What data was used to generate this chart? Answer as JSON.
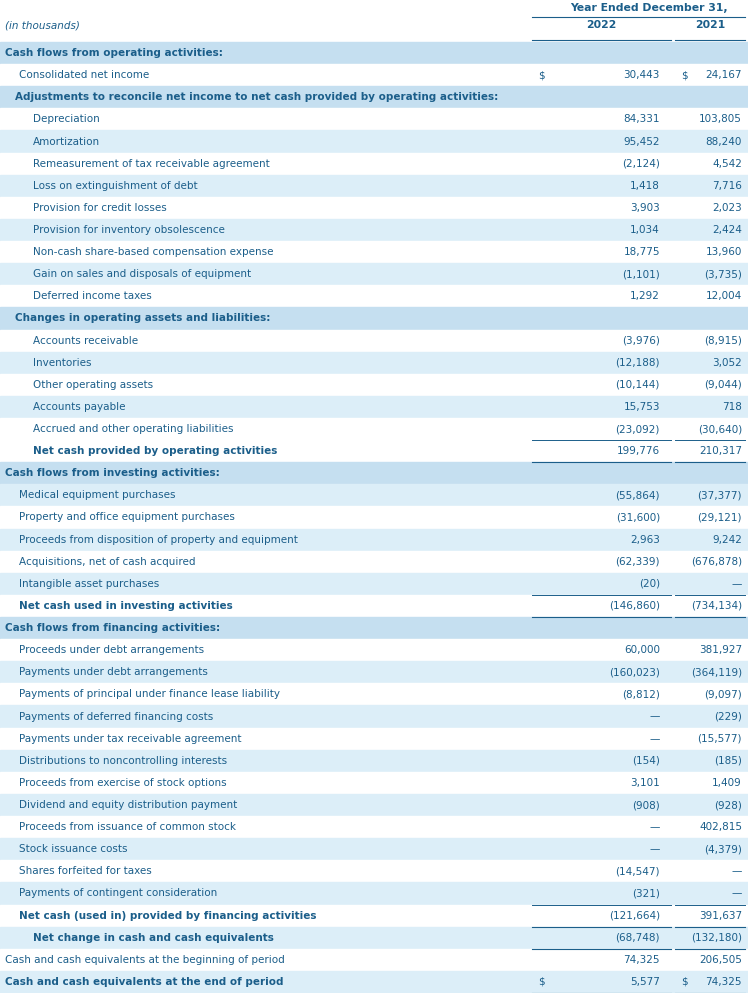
{
  "header_title": "Year Ended December 31,",
  "rows": [
    {
      "label": "Cash flows from operating activities:",
      "val2022": "",
      "val2021": "",
      "style": "section_header",
      "indent": 0,
      "bg": "#c5dff0"
    },
    {
      "label": "Consolidated net income",
      "val2022": "dollar_30,443",
      "val2021": "24,167",
      "style": "normal",
      "indent": 1,
      "bg": "#ffffff",
      "dollar2021": true
    },
    {
      "label": "Adjustments to reconcile net income to net cash provided by operating activities:",
      "val2022": "",
      "val2021": "",
      "style": "sub_header",
      "indent": 1,
      "bg": "#c5dff0"
    },
    {
      "label": "Depreciation",
      "val2022": "84,331",
      "val2021": "103,805",
      "style": "normal",
      "indent": 2,
      "bg": "#ffffff"
    },
    {
      "label": "Amortization",
      "val2022": "95,452",
      "val2021": "88,240",
      "style": "normal",
      "indent": 2,
      "bg": "#dceef8"
    },
    {
      "label": "Remeasurement of tax receivable agreement",
      "val2022": "(2,124)",
      "val2021": "4,542",
      "style": "normal",
      "indent": 2,
      "bg": "#ffffff"
    },
    {
      "label": "Loss on extinguishment of debt",
      "val2022": "1,418",
      "val2021": "7,716",
      "style": "normal",
      "indent": 2,
      "bg": "#dceef8"
    },
    {
      "label": "Provision for credit losses",
      "val2022": "3,903",
      "val2021": "2,023",
      "style": "normal",
      "indent": 2,
      "bg": "#ffffff"
    },
    {
      "label": "Provision for inventory obsolescence",
      "val2022": "1,034",
      "val2021": "2,424",
      "style": "normal",
      "indent": 2,
      "bg": "#dceef8"
    },
    {
      "label": "Non-cash share-based compensation expense",
      "val2022": "18,775",
      "val2021": "13,960",
      "style": "normal",
      "indent": 2,
      "bg": "#ffffff"
    },
    {
      "label": "Gain on sales and disposals of equipment",
      "val2022": "(1,101)",
      "val2021": "(3,735)",
      "style": "normal",
      "indent": 2,
      "bg": "#dceef8"
    },
    {
      "label": "Deferred income taxes",
      "val2022": "1,292",
      "val2021": "12,004",
      "style": "normal",
      "indent": 2,
      "bg": "#ffffff"
    },
    {
      "label": "Changes in operating assets and liabilities:",
      "val2022": "",
      "val2021": "",
      "style": "sub_header",
      "indent": 1,
      "bg": "#c5dff0"
    },
    {
      "label": "Accounts receivable",
      "val2022": "(3,976)",
      "val2021": "(8,915)",
      "style": "normal",
      "indent": 2,
      "bg": "#ffffff"
    },
    {
      "label": "Inventories",
      "val2022": "(12,188)",
      "val2021": "3,052",
      "style": "normal",
      "indent": 2,
      "bg": "#dceef8"
    },
    {
      "label": "Other operating assets",
      "val2022": "(10,144)",
      "val2021": "(9,044)",
      "style": "normal",
      "indent": 2,
      "bg": "#ffffff"
    },
    {
      "label": "Accounts payable",
      "val2022": "15,753",
      "val2021": "718",
      "style": "normal",
      "indent": 2,
      "bg": "#dceef8"
    },
    {
      "label": "Accrued and other operating liabilities",
      "val2022": "(23,092)",
      "val2021": "(30,640)",
      "style": "normal",
      "indent": 2,
      "bg": "#ffffff"
    },
    {
      "label": "Net cash provided by operating activities",
      "val2022": "199,776",
      "val2021": "210,317",
      "style": "subtotal",
      "indent": 2,
      "bg": "#ffffff",
      "top_border": true,
      "bottom_border": true
    },
    {
      "label": "Cash flows from investing activities:",
      "val2022": "",
      "val2021": "",
      "style": "section_header",
      "indent": 0,
      "bg": "#c5dff0"
    },
    {
      "label": "Medical equipment purchases",
      "val2022": "(55,864)",
      "val2021": "(37,377)",
      "style": "normal",
      "indent": 1,
      "bg": "#dceef8"
    },
    {
      "label": "Property and office equipment purchases",
      "val2022": "(31,600)",
      "val2021": "(29,121)",
      "style": "normal",
      "indent": 1,
      "bg": "#ffffff"
    },
    {
      "label": "Proceeds from disposition of property and equipment",
      "val2022": "2,963",
      "val2021": "9,242",
      "style": "normal",
      "indent": 1,
      "bg": "#dceef8"
    },
    {
      "label": "Acquisitions, net of cash acquired",
      "val2022": "(62,339)",
      "val2021": "(676,878)",
      "style": "normal",
      "indent": 1,
      "bg": "#ffffff"
    },
    {
      "label": "Intangible asset purchases",
      "val2022": "(20)",
      "val2021": "—",
      "style": "normal",
      "indent": 1,
      "bg": "#dceef8"
    },
    {
      "label": "Net cash used in investing activities",
      "val2022": "(146,860)",
      "val2021": "(734,134)",
      "style": "subtotal",
      "indent": 1,
      "bg": "#ffffff",
      "top_border": true,
      "bottom_border": true
    },
    {
      "label": "Cash flows from financing activities:",
      "val2022": "",
      "val2021": "",
      "style": "section_header",
      "indent": 0,
      "bg": "#c5dff0"
    },
    {
      "label": "Proceeds under debt arrangements",
      "val2022": "60,000",
      "val2021": "381,927",
      "style": "normal",
      "indent": 1,
      "bg": "#ffffff"
    },
    {
      "label": "Payments under debt arrangements",
      "val2022": "(160,023)",
      "val2021": "(364,119)",
      "style": "normal",
      "indent": 1,
      "bg": "#dceef8"
    },
    {
      "label": "Payments of principal under finance lease liability",
      "val2022": "(8,812)",
      "val2021": "(9,097)",
      "style": "normal",
      "indent": 1,
      "bg": "#ffffff"
    },
    {
      "label": "Payments of deferred financing costs",
      "val2022": "—",
      "val2021": "(229)",
      "style": "normal",
      "indent": 1,
      "bg": "#dceef8"
    },
    {
      "label": "Payments under tax receivable agreement",
      "val2022": "—",
      "val2021": "(15,577)",
      "style": "normal",
      "indent": 1,
      "bg": "#ffffff"
    },
    {
      "label": "Distributions to noncontrolling interests",
      "val2022": "(154)",
      "val2021": "(185)",
      "style": "normal",
      "indent": 1,
      "bg": "#dceef8"
    },
    {
      "label": "Proceeds from exercise of stock options",
      "val2022": "3,101",
      "val2021": "1,409",
      "style": "normal",
      "indent": 1,
      "bg": "#ffffff"
    },
    {
      "label": "Dividend and equity distribution payment",
      "val2022": "(908)",
      "val2021": "(928)",
      "style": "normal",
      "indent": 1,
      "bg": "#dceef8"
    },
    {
      "label": "Proceeds from issuance of common stock",
      "val2022": "—",
      "val2021": "402,815",
      "style": "normal",
      "indent": 1,
      "bg": "#ffffff"
    },
    {
      "label": "Stock issuance costs",
      "val2022": "—",
      "val2021": "(4,379)",
      "style": "normal",
      "indent": 1,
      "bg": "#dceef8"
    },
    {
      "label": "Shares forfeited for taxes",
      "val2022": "(14,547)",
      "val2021": "—",
      "style": "normal",
      "indent": 1,
      "bg": "#ffffff"
    },
    {
      "label": "Payments of contingent consideration",
      "val2022": "(321)",
      "val2021": "—",
      "style": "normal",
      "indent": 1,
      "bg": "#dceef8"
    },
    {
      "label": "Net cash (used in) provided by financing activities",
      "val2022": "(121,664)",
      "val2021": "391,637",
      "style": "subtotal",
      "indent": 1,
      "bg": "#ffffff",
      "top_border": true,
      "bottom_border": true
    },
    {
      "label": "Net change in cash and cash equivalents",
      "val2022": "(68,748)",
      "val2021": "(132,180)",
      "style": "subtotal",
      "indent": 2,
      "bg": "#dceef8",
      "top_border": false,
      "bottom_border": true
    },
    {
      "label": "Cash and cash equivalents at the beginning of period",
      "val2022": "74,325",
      "val2021": "206,505",
      "style": "normal",
      "indent": 0,
      "bg": "#ffffff"
    },
    {
      "label": "Cash and cash equivalents at the end of period",
      "val2022": "dollar_5,577",
      "val2021": "74,325",
      "style": "final",
      "indent": 0,
      "bg": "#dceef8",
      "dollar2021": true,
      "bottom_border": true,
      "double_border": true
    }
  ],
  "text_color": "#1b5e8a",
  "header_bg": "#ffffff",
  "section_bg": "#c5dff0",
  "alt_bg": "#dceef8",
  "white_bg": "#ffffff",
  "fig_width": 7.48,
  "fig_height": 9.93,
  "dpi": 100
}
